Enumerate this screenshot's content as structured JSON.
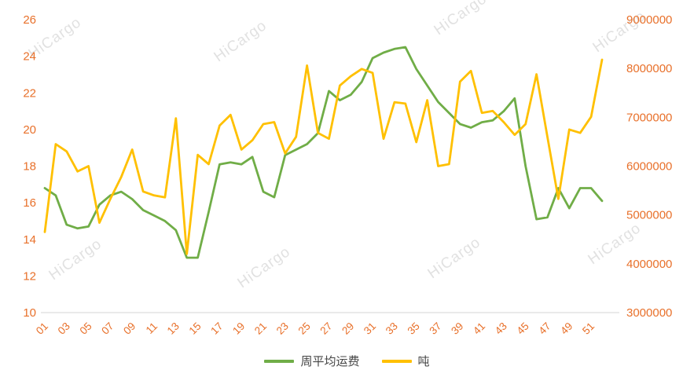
{
  "watermark": {
    "text": "HiCargo"
  },
  "colors": {
    "tick_label": "#E8702A",
    "axis_line": "#D6D6D6",
    "legend_text": "#444444"
  },
  "chart_data": {
    "type": "line",
    "title": "",
    "xlabel": "",
    "ylabel_left": "",
    "ylabel_right": "",
    "grid": "off",
    "legend_position": "bottom",
    "weeks": [
      "01",
      "02",
      "03",
      "04",
      "05",
      "06",
      "07",
      "08",
      "09",
      "10",
      "11",
      "12",
      "13",
      "14",
      "15",
      "16",
      "17",
      "18",
      "19",
      "20",
      "21",
      "22",
      "23",
      "24",
      "25",
      "26",
      "27",
      "28",
      "29",
      "30",
      "31",
      "32",
      "33",
      "34",
      "35",
      "36",
      "37",
      "38",
      "39",
      "40",
      "41",
      "42",
      "43",
      "44",
      "45",
      "46",
      "47",
      "48",
      "49",
      "50",
      "51",
      "52"
    ],
    "x_tick_labels_shown": [
      "01",
      "03",
      "05",
      "07",
      "09",
      "11",
      "13",
      "15",
      "17",
      "19",
      "21",
      "23",
      "25",
      "27",
      "29",
      "31",
      "33",
      "35",
      "37",
      "39",
      "41",
      "43",
      "45",
      "47",
      "49",
      "51"
    ],
    "x_tick_interval": 2,
    "left_axis": {
      "min": 10,
      "max": 26,
      "step": 2,
      "ticks": [
        26,
        24,
        22,
        20,
        18,
        16,
        14,
        12,
        10
      ]
    },
    "right_axis": {
      "min": 3000000,
      "max": 9000000,
      "step": 1000000,
      "ticks": [
        9000000,
        8000000,
        7000000,
        6000000,
        5000000,
        4000000,
        3000000
      ]
    },
    "series": [
      {
        "name": "周平均运费",
        "axis": "left",
        "color": "#70AD47",
        "values": [
          16.8,
          16.4,
          14.8,
          14.6,
          14.7,
          15.9,
          16.4,
          16.6,
          16.2,
          15.6,
          15.3,
          15.0,
          14.5,
          13.0,
          13.0,
          15.5,
          18.1,
          18.2,
          18.1,
          18.5,
          16.6,
          16.3,
          18.6,
          18.9,
          19.2,
          19.8,
          22.1,
          21.6,
          21.9,
          22.6,
          23.9,
          24.2,
          24.4,
          24.5,
          23.3,
          22.4,
          21.5,
          20.9,
          20.3,
          20.1,
          20.4,
          20.5,
          21.0,
          21.7,
          18.0,
          15.1,
          15.2,
          16.8,
          15.7,
          16.8,
          16.8,
          16.1
        ]
      },
      {
        "name": "吨",
        "axis": "right",
        "color": "#FFC000",
        "values": [
          4650000,
          6450000,
          6300000,
          5890000,
          6000000,
          4840000,
          5330000,
          5780000,
          6340000,
          5480000,
          5400000,
          5360000,
          6980000,
          4200000,
          6230000,
          6040000,
          6830000,
          7050000,
          6340000,
          6530000,
          6860000,
          6900000,
          6260000,
          6600000,
          8060000,
          6680000,
          6560000,
          7650000,
          7840000,
          7990000,
          7910000,
          6560000,
          7310000,
          7280000,
          6490000,
          7350000,
          6000000,
          6040000,
          7730000,
          7950000,
          7090000,
          7130000,
          6900000,
          6640000,
          6860000,
          7880000,
          6600000,
          5330000,
          6750000,
          6680000,
          7010000,
          8180000
        ]
      }
    ]
  }
}
